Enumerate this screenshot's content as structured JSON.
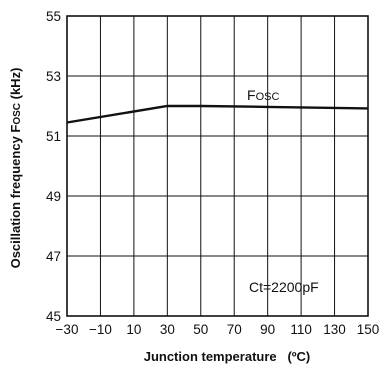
{
  "chart_data": {
    "type": "line",
    "xlabel": "Junction temperature   (ºC)",
    "ylabel": {
      "prefix": "Oscillation frequency  F",
      "sub": "OSC",
      "suffix": " (kHz)"
    },
    "xlim": [
      -30,
      150
    ],
    "ylim": [
      45,
      55
    ],
    "x_ticks": [
      -30,
      -10,
      10,
      30,
      50,
      70,
      90,
      110,
      130,
      150
    ],
    "y_ticks": [
      45,
      47,
      49,
      51,
      53,
      55
    ],
    "x_grid": [
      -30,
      -10,
      10,
      30,
      50,
      70,
      90,
      110,
      130,
      150
    ],
    "y_grid": [
      45,
      47,
      49,
      51,
      53,
      55
    ],
    "grid": true,
    "series": [
      {
        "name": {
          "main": "F",
          "sub": "OSC"
        },
        "x": [
          -30,
          30,
          50,
          90,
          150
        ],
        "y": [
          51.45,
          52.0,
          52.0,
          51.97,
          51.92
        ]
      }
    ],
    "annotations": [
      {
        "text": "Ct=2200pF"
      }
    ]
  }
}
